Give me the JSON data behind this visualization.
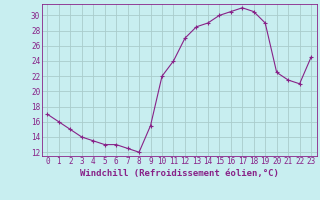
{
  "x": [
    0,
    1,
    2,
    3,
    4,
    5,
    6,
    7,
    8,
    9,
    10,
    11,
    12,
    13,
    14,
    15,
    16,
    17,
    18,
    19,
    20,
    21,
    22,
    23
  ],
  "y": [
    17,
    16,
    15,
    14,
    13.5,
    13,
    13,
    12.5,
    12,
    15.5,
    22,
    24,
    27,
    28.5,
    29,
    30,
    30.5,
    31,
    30.5,
    29,
    22.5,
    21.5,
    21,
    24.5
  ],
  "line_color": "#882288",
  "marker": "+",
  "marker_size": 3,
  "bg_color": "#c8eef0",
  "grid_color": "#aacccc",
  "xlabel": "Windchill (Refroidissement éolien,°C)",
  "yticks": [
    12,
    14,
    16,
    18,
    20,
    22,
    24,
    26,
    28,
    30
  ],
  "xticks": [
    0,
    1,
    2,
    3,
    4,
    5,
    6,
    7,
    8,
    9,
    10,
    11,
    12,
    13,
    14,
    15,
    16,
    17,
    18,
    19,
    20,
    21,
    22,
    23
  ],
  "ylim": [
    11.5,
    31.5
  ],
  "xlim": [
    -0.5,
    23.5
  ],
  "tick_color": "#882288",
  "label_color": "#882288",
  "axis_color": "#882288",
  "tick_fontsize": 5.5,
  "label_fontsize": 6.5
}
